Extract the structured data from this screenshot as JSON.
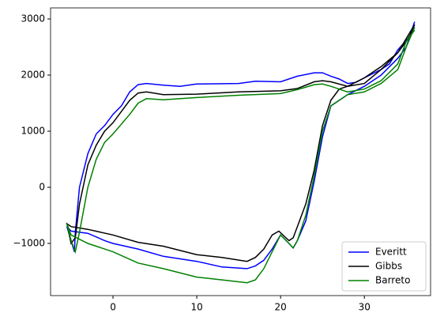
{
  "chart_data": {
    "type": "line",
    "xlim": [
      -7.45,
      37.9
    ],
    "xticks": [
      0,
      10,
      20,
      30
    ],
    "ylim": [
      -1930,
      3197
    ],
    "yticks": [
      {
        "value": -1000,
        "label": "−1000"
      },
      0,
      1000,
      2000,
      3000
    ],
    "legend": "lower right",
    "series": [
      {
        "name": "Everitt",
        "color": "#0000ff",
        "x": [
          36,
          35.5,
          34,
          33,
          32,
          30,
          29,
          28,
          27,
          26,
          25,
          24,
          22,
          20,
          17,
          15,
          10,
          8,
          6,
          4,
          3,
          2,
          1,
          0,
          -1,
          -2,
          -3,
          -4,
          -4.5,
          -4.6,
          -5,
          -5.5,
          -5,
          -3,
          -1,
          0,
          3,
          6,
          10,
          13,
          16,
          17,
          18,
          19,
          20,
          21,
          21.5,
          22,
          23,
          24,
          25,
          26,
          28,
          30,
          32,
          34,
          35,
          36
        ],
        "values": [
          2900,
          2700,
          2450,
          2200,
          2100,
          1950,
          1870,
          1850,
          1930,
          1980,
          2040,
          2040,
          1980,
          1880,
          1890,
          1850,
          1840,
          1800,
          1820,
          1850,
          1830,
          1700,
          1450,
          1300,
          1100,
          950,
          600,
          0,
          -800,
          -1150,
          -950,
          -700,
          -780,
          -820,
          -950,
          -1000,
          -1100,
          -1230,
          -1320,
          -1420,
          -1450,
          -1400,
          -1300,
          -1100,
          -850,
          -1000,
          -1080,
          -950,
          -600,
          100,
          900,
          1450,
          1650,
          1800,
          2000,
          2300,
          2500,
          2950
        ]
      },
      {
        "name": "Gibbs",
        "color": "#000000",
        "x": [
          36,
          35,
          34,
          32,
          30,
          28,
          26,
          25,
          24,
          22,
          20,
          15,
          10,
          6,
          4,
          3,
          2,
          0,
          -1,
          -2,
          -3,
          -4,
          -4.5,
          -5,
          -5.5,
          -5,
          -3,
          0,
          3,
          6,
          10,
          13,
          16,
          17,
          18,
          19,
          19.8,
          20.5,
          21,
          21.5,
          22,
          23,
          24,
          25,
          26,
          27,
          28,
          30,
          32,
          34,
          35,
          36
        ],
        "values": [
          2850,
          2600,
          2400,
          2150,
          1950,
          1800,
          1880,
          1900,
          1880,
          1760,
          1720,
          1700,
          1660,
          1650,
          1700,
          1680,
          1550,
          1150,
          1000,
          750,
          400,
          -300,
          -900,
          -1000,
          -650,
          -700,
          -750,
          -850,
          -980,
          -1050,
          -1200,
          -1250,
          -1320,
          -1250,
          -1100,
          -850,
          -780,
          -880,
          -950,
          -900,
          -700,
          -300,
          300,
          1100,
          1550,
          1750,
          1800,
          1850,
          2100,
          2400,
          2650,
          2900
        ]
      },
      {
        "name": "Barreto",
        "color": "#008000",
        "x": [
          36,
          35,
          34,
          32,
          30,
          28,
          26,
          25,
          24,
          22,
          20,
          15,
          10,
          6,
          4,
          3,
          2,
          0,
          -1,
          -2,
          -3,
          -4,
          -4.5,
          -5,
          -5.5,
          -5,
          -3,
          0,
          3,
          6,
          10,
          13,
          16,
          17,
          18,
          19,
          20,
          21,
          21.5,
          22,
          23,
          24,
          25,
          26,
          28,
          30,
          32,
          34,
          35,
          36
        ],
        "values": [
          2800,
          2600,
          2200,
          1900,
          1750,
          1700,
          1800,
          1840,
          1830,
          1740,
          1670,
          1640,
          1600,
          1560,
          1580,
          1500,
          1300,
          950,
          800,
          500,
          0,
          -800,
          -1150,
          -950,
          -650,
          -850,
          -1000,
          -1150,
          -1350,
          -1450,
          -1600,
          -1650,
          -1700,
          -1650,
          -1450,
          -1150,
          -850,
          -1000,
          -1080,
          -950,
          -500,
          200,
          1000,
          1450,
          1650,
          1700,
          1850,
          2100,
          2500,
          2850
        ]
      }
    ]
  }
}
